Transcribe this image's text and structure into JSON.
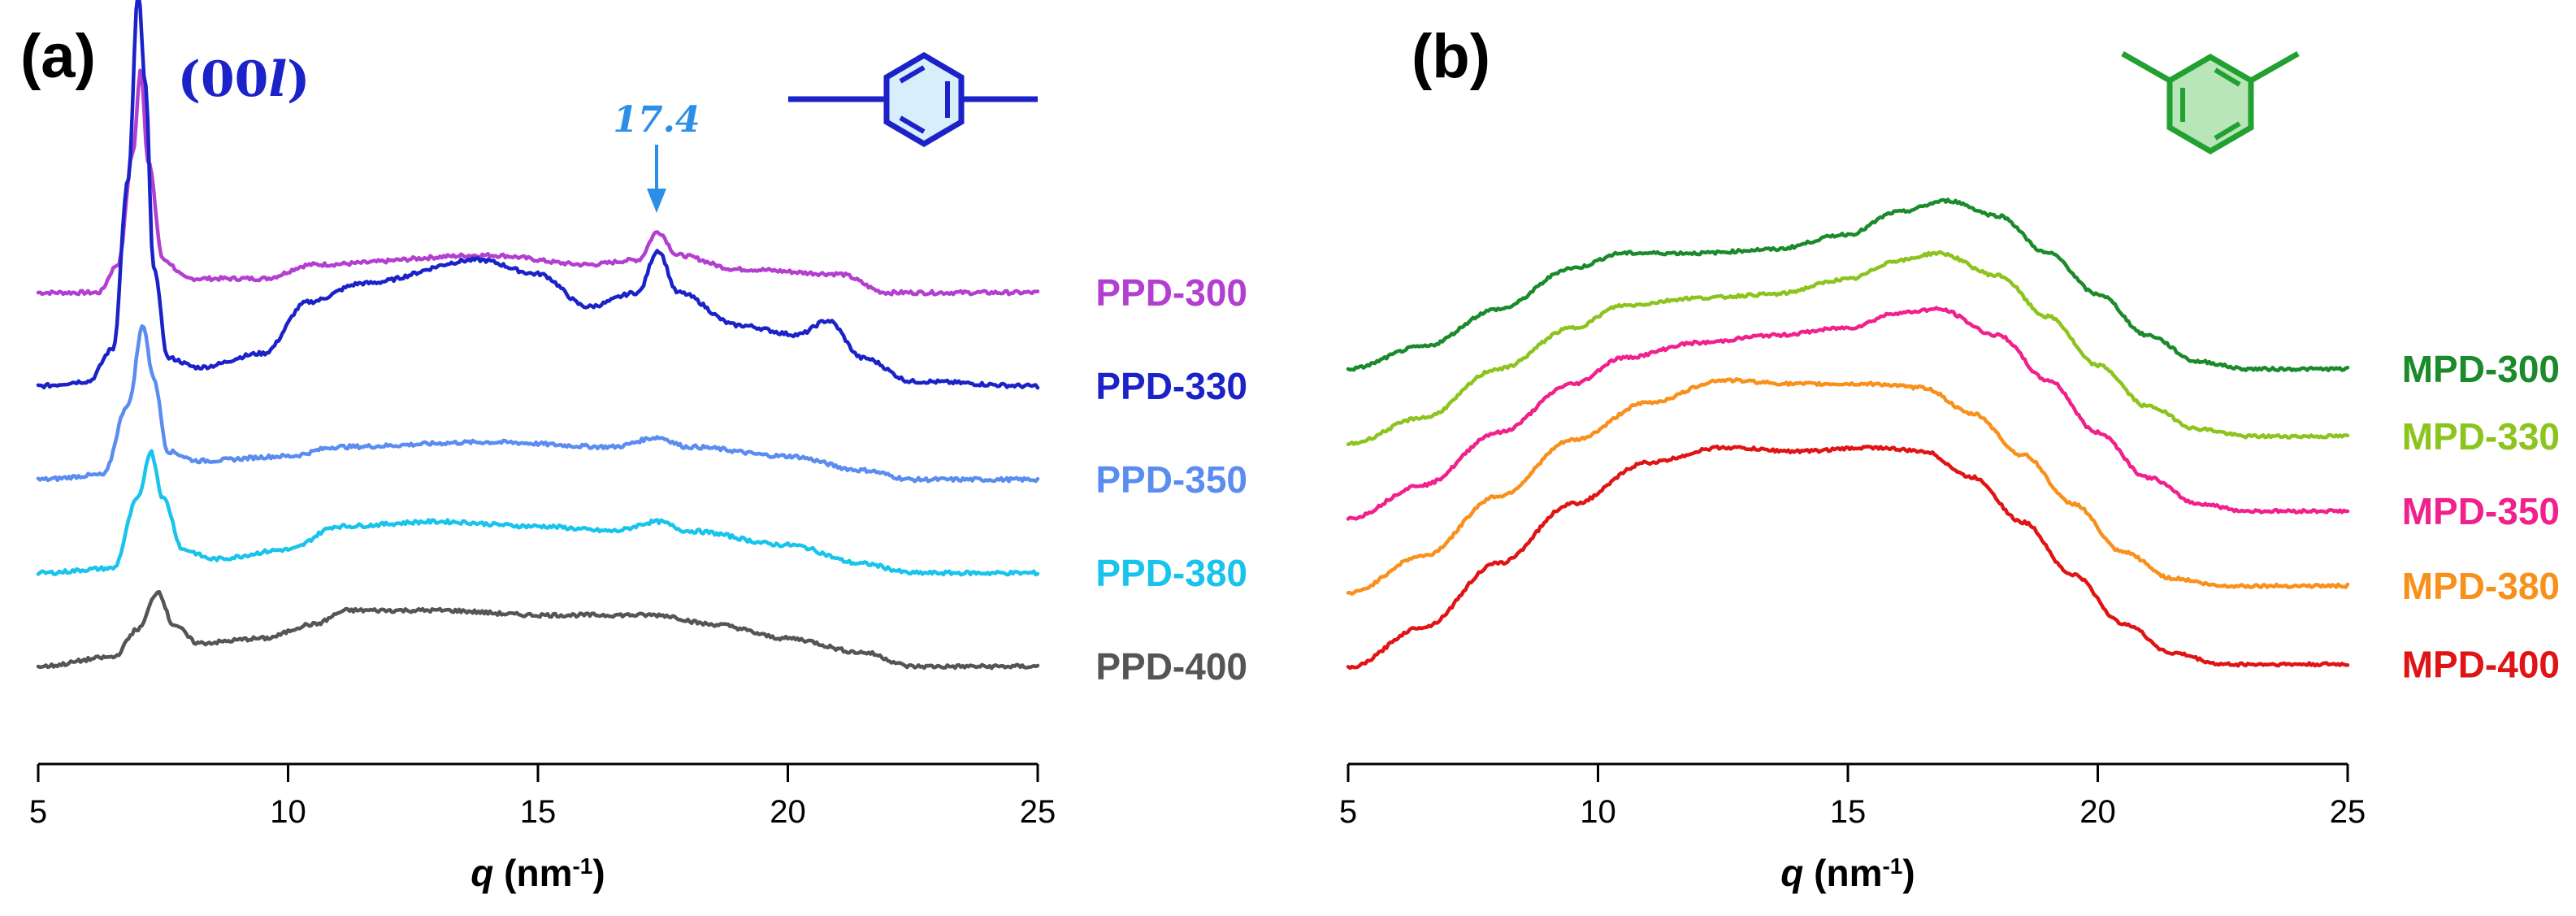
{
  "colors": {
    "ppd_300": "#b23fd0",
    "ppd_330": "#1a22c8",
    "ppd_350": "#5b8cf0",
    "ppd_380": "#19c4ec",
    "ppd_400": "#555555",
    "mpd_300": "#1a8a2a",
    "mpd_330": "#8cc41e",
    "mpd_350": "#f0208c",
    "mpd_380": "#f8901c",
    "mpd_400": "#e01414",
    "annotation_blue": "#2c8ee6",
    "miller_blue": "#1a22c8",
    "ring_blue_fill": "#d8eefa",
    "ring_green_fill": "#b8e6b8",
    "ring_green_stroke": "#22a030"
  },
  "icons": [
    "para-benzene-structure-icon",
    "meta-benzene-structure-icon",
    "arrow-down-icon"
  ],
  "chart_data": [
    {
      "type": "line",
      "panel_label": "(a)",
      "xlabel_var": "q",
      "xlabel_unit": " (nm",
      "xlabel_exp": "-1",
      "xlabel_close": ")",
      "xlim": [
        5,
        25
      ],
      "xticks": [
        5,
        10,
        15,
        20,
        25
      ],
      "tick_labels": [
        "5",
        "10",
        "15",
        "20",
        "25"
      ],
      "ylabel": "",
      "y_axis_shown": false,
      "peak_label_prefix": "(00",
      "peak_label_var": "l",
      "peak_label_suffix": ")",
      "peak_label_x": 7.1,
      "annotation": "17.4",
      "annotation_x": 17.4,
      "series": [
        {
          "name": "PPD-300",
          "color_key": "ppd_300",
          "offset": 4.0,
          "points": [
            [
              5,
              0
            ],
            [
              6.2,
              0
            ],
            [
              6.6,
              0.3
            ],
            [
              6.9,
              1.5
            ],
            [
              7.05,
              2.4
            ],
            [
              7.2,
              1.4
            ],
            [
              7.5,
              0.35
            ],
            [
              8.0,
              0.15
            ],
            [
              9.5,
              0.15
            ],
            [
              10.5,
              0.3
            ],
            [
              14,
              0.4
            ],
            [
              16,
              0.3
            ],
            [
              17.0,
              0.35
            ],
            [
              17.4,
              0.65
            ],
            [
              17.8,
              0.4
            ],
            [
              19,
              0.25
            ],
            [
              21,
              0.2
            ],
            [
              22,
              0.0
            ],
            [
              25,
              0
            ]
          ]
        },
        {
          "name": "PPD-330",
          "color_key": "ppd_330",
          "offset": 3.0,
          "points": [
            [
              5,
              0
            ],
            [
              6.0,
              0.05
            ],
            [
              6.5,
              0.4
            ],
            [
              6.8,
              2.2
            ],
            [
              7.0,
              4.2
            ],
            [
              7.15,
              3.2
            ],
            [
              7.3,
              1.3
            ],
            [
              7.6,
              0.3
            ],
            [
              8.2,
              0.2
            ],
            [
              9.5,
              0.35
            ],
            [
              10.4,
              0.9
            ],
            [
              11.5,
              1.1
            ],
            [
              13.8,
              1.35
            ],
            [
              15,
              1.2
            ],
            [
              16,
              0.85
            ],
            [
              17.0,
              1.0
            ],
            [
              17.4,
              1.45
            ],
            [
              17.8,
              1.0
            ],
            [
              19,
              0.65
            ],
            [
              20.2,
              0.55
            ],
            [
              20.8,
              0.7
            ],
            [
              21.5,
              0.3
            ],
            [
              22.5,
              0.05
            ],
            [
              25,
              0
            ]
          ]
        },
        {
          "name": "PPD-350",
          "color_key": "ppd_350",
          "offset": 2.0,
          "points": [
            [
              5,
              0
            ],
            [
              6.3,
              0.05
            ],
            [
              6.8,
              0.8
            ],
            [
              7.1,
              1.65
            ],
            [
              7.3,
              1.1
            ],
            [
              7.6,
              0.3
            ],
            [
              8.2,
              0.2
            ],
            [
              10,
              0.25
            ],
            [
              11,
              0.35
            ],
            [
              14,
              0.4
            ],
            [
              16.5,
              0.35
            ],
            [
              17.4,
              0.45
            ],
            [
              18,
              0.35
            ],
            [
              20,
              0.25
            ],
            [
              21.5,
              0.1
            ],
            [
              22.5,
              0.0
            ],
            [
              25,
              0
            ]
          ]
        },
        {
          "name": "PPD-380",
          "color_key": "ppd_380",
          "offset": 1.0,
          "points": [
            [
              5,
              0
            ],
            [
              6.5,
              0.05
            ],
            [
              7.0,
              0.8
            ],
            [
              7.25,
              1.3
            ],
            [
              7.5,
              0.8
            ],
            [
              7.9,
              0.25
            ],
            [
              8.5,
              0.15
            ],
            [
              10,
              0.25
            ],
            [
              11,
              0.5
            ],
            [
              13,
              0.55
            ],
            [
              15,
              0.5
            ],
            [
              16.5,
              0.45
            ],
            [
              17.4,
              0.55
            ],
            [
              18,
              0.45
            ],
            [
              20,
              0.3
            ],
            [
              21.5,
              0.1
            ],
            [
              22.5,
              0.0
            ],
            [
              25,
              0
            ]
          ]
        },
        {
          "name": "PPD-400",
          "color_key": "ppd_400",
          "offset": 0.0,
          "points": [
            [
              5,
              0
            ],
            [
              6.5,
              0.1
            ],
            [
              7.0,
              0.4
            ],
            [
              7.4,
              0.8
            ],
            [
              7.7,
              0.45
            ],
            [
              8.2,
              0.25
            ],
            [
              9.5,
              0.3
            ],
            [
              10.5,
              0.45
            ],
            [
              11.2,
              0.6
            ],
            [
              13,
              0.6
            ],
            [
              15,
              0.55
            ],
            [
              17.4,
              0.55
            ],
            [
              18.5,
              0.45
            ],
            [
              20,
              0.3
            ],
            [
              21.5,
              0.15
            ],
            [
              22.5,
              0.0
            ],
            [
              25,
              0
            ]
          ]
        }
      ]
    },
    {
      "type": "line",
      "panel_label": "(b)",
      "xlabel_var": "q",
      "xlabel_unit": " (nm",
      "xlabel_exp": "-1",
      "xlabel_close": ")",
      "xlim": [
        5,
        25
      ],
      "xticks": [
        5,
        10,
        15,
        20,
        25
      ],
      "tick_labels": [
        "5",
        "10",
        "15",
        "20",
        "25"
      ],
      "ylabel": "",
      "y_axis_shown": false,
      "series": [
        {
          "name": "MPD-300",
          "color_key": "mpd_300",
          "offset": 4.0,
          "points": [
            [
              5,
              0
            ],
            [
              6.5,
              0.3
            ],
            [
              8,
              0.8
            ],
            [
              9.5,
              1.35
            ],
            [
              10.5,
              1.55
            ],
            [
              12,
              1.55
            ],
            [
              13.5,
              1.6
            ],
            [
              15,
              1.8
            ],
            [
              16,
              2.1
            ],
            [
              17,
              2.25
            ],
            [
              18,
              2.05
            ],
            [
              19,
              1.55
            ],
            [
              20,
              1.0
            ],
            [
              21,
              0.45
            ],
            [
              22,
              0.1
            ],
            [
              23,
              0.0
            ],
            [
              25,
              0
            ]
          ]
        },
        {
          "name": "MPD-330",
          "color_key": "mpd_330",
          "offset": 3.0,
          "points": [
            [
              5,
              0
            ],
            [
              6.5,
              0.35
            ],
            [
              8,
              1.0
            ],
            [
              9.5,
              1.55
            ],
            [
              10.5,
              1.85
            ],
            [
              12,
              1.95
            ],
            [
              13.5,
              2.0
            ],
            [
              15,
              2.2
            ],
            [
              16,
              2.45
            ],
            [
              16.8,
              2.55
            ],
            [
              18,
              2.25
            ],
            [
              19,
              1.7
            ],
            [
              20,
              1.05
            ],
            [
              21,
              0.5
            ],
            [
              22,
              0.2
            ],
            [
              23,
              0.1
            ],
            [
              25,
              0.1
            ]
          ]
        },
        {
          "name": "MPD-350",
          "color_key": "mpd_350",
          "offset": 2.0,
          "points": [
            [
              5,
              0
            ],
            [
              6.5,
              0.45
            ],
            [
              8,
              1.15
            ],
            [
              9.5,
              1.8
            ],
            [
              10.5,
              2.15
            ],
            [
              12,
              2.35
            ],
            [
              13.5,
              2.45
            ],
            [
              15,
              2.55
            ],
            [
              16,
              2.75
            ],
            [
              16.8,
              2.8
            ],
            [
              18,
              2.45
            ],
            [
              19,
              1.85
            ],
            [
              20,
              1.15
            ],
            [
              21,
              0.55
            ],
            [
              22,
              0.2
            ],
            [
              23,
              0.1
            ],
            [
              25,
              0.1
            ]
          ]
        },
        {
          "name": "MPD-380",
          "color_key": "mpd_380",
          "offset": 1.0,
          "points": [
            [
              5,
              0
            ],
            [
              6.5,
              0.5
            ],
            [
              8,
              1.3
            ],
            [
              9.5,
              2.05
            ],
            [
              11,
              2.55
            ],
            [
              12.5,
              2.85
            ],
            [
              14,
              2.8
            ],
            [
              15.5,
              2.8
            ],
            [
              16.5,
              2.75
            ],
            [
              17.5,
              2.4
            ],
            [
              18.5,
              1.85
            ],
            [
              19.5,
              1.2
            ],
            [
              20.5,
              0.55
            ],
            [
              21.5,
              0.2
            ],
            [
              22.5,
              0.1
            ],
            [
              25,
              0.1
            ]
          ]
        },
        {
          "name": "MPD-400",
          "color_key": "mpd_400",
          "offset": 0.0,
          "points": [
            [
              5,
              0
            ],
            [
              6.5,
              0.55
            ],
            [
              8,
              1.4
            ],
            [
              9.5,
              2.2
            ],
            [
              11,
              2.75
            ],
            [
              12.5,
              2.95
            ],
            [
              14,
              2.9
            ],
            [
              15.5,
              2.95
            ],
            [
              16.5,
              2.9
            ],
            [
              17.5,
              2.55
            ],
            [
              18.5,
              1.95
            ],
            [
              19.5,
              1.25
            ],
            [
              20.5,
              0.6
            ],
            [
              21.5,
              0.2
            ],
            [
              22.5,
              0.05
            ],
            [
              25,
              0.05
            ]
          ]
        }
      ]
    }
  ]
}
